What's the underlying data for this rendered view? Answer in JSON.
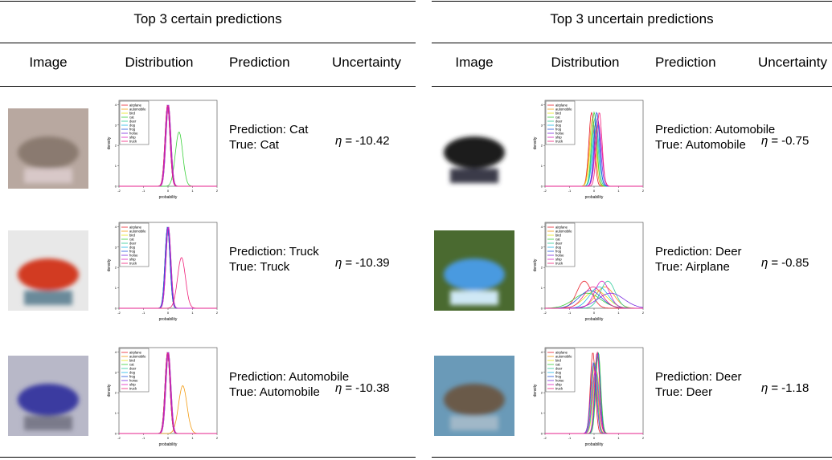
{
  "panels": [
    {
      "title": "Top 3 certain predictions",
      "headers": [
        "Image",
        "Distribution",
        "Prediction",
        "Uncertainty"
      ],
      "rows": [
        {
          "prediction": "Prediction: Cat",
          "truth": "True: Cat",
          "uncertainty": {
            "symbol": "η",
            "relation": "=",
            "value": -10.42
          }
        },
        {
          "prediction": "Prediction: Truck",
          "truth": "True: Truck",
          "uncertainty": {
            "symbol": "η",
            "relation": "=",
            "value": -10.39
          }
        },
        {
          "prediction": "Prediction: Automobile",
          "truth": "True: Automobile",
          "uncertainty": {
            "symbol": "η",
            "relation": "=",
            "value": -10.38
          }
        }
      ]
    },
    {
      "title": "Top 3 uncertain predictions",
      "headers": [
        "Image",
        "Distribution",
        "Prediction",
        "Uncertainty"
      ],
      "rows": [
        {
          "prediction": "Prediction: Automobile",
          "truth": "True: Automobile",
          "uncertainty": {
            "symbol": "η",
            "relation": "=",
            "value": -0.75
          }
        },
        {
          "prediction": "Prediction: Deer",
          "truth": "True: Airplane",
          "uncertainty": {
            "symbol": "η",
            "relation": "=",
            "value": -0.85
          }
        },
        {
          "prediction": "Prediction: Deer",
          "truth": "True: Deer",
          "uncertainty": {
            "symbol": "η",
            "relation": "=",
            "value": -1.18
          }
        }
      ]
    }
  ],
  "plot": {
    "x_label": "probability",
    "y_label": "density",
    "xticks": [
      -2,
      -1,
      0,
      1,
      2
    ],
    "yticks": [
      0,
      1,
      2,
      3,
      4
    ],
    "legend": [
      {
        "name": "airplane",
        "color": "#e8202a"
      },
      {
        "name": "automobile",
        "color": "#f39c12"
      },
      {
        "name": "bird",
        "color": "#e6e619"
      },
      {
        "name": "cat",
        "color": "#3ad13a"
      },
      {
        "name": "deer",
        "color": "#2ecc9a"
      },
      {
        "name": "dog",
        "color": "#1fb8e8"
      },
      {
        "name": "frog",
        "color": "#2255e0"
      },
      {
        "name": "horse",
        "color": "#7a2be0"
      },
      {
        "name": "ship",
        "color": "#e020c0"
      },
      {
        "name": "truck",
        "color": "#f0207a"
      }
    ]
  }
}
